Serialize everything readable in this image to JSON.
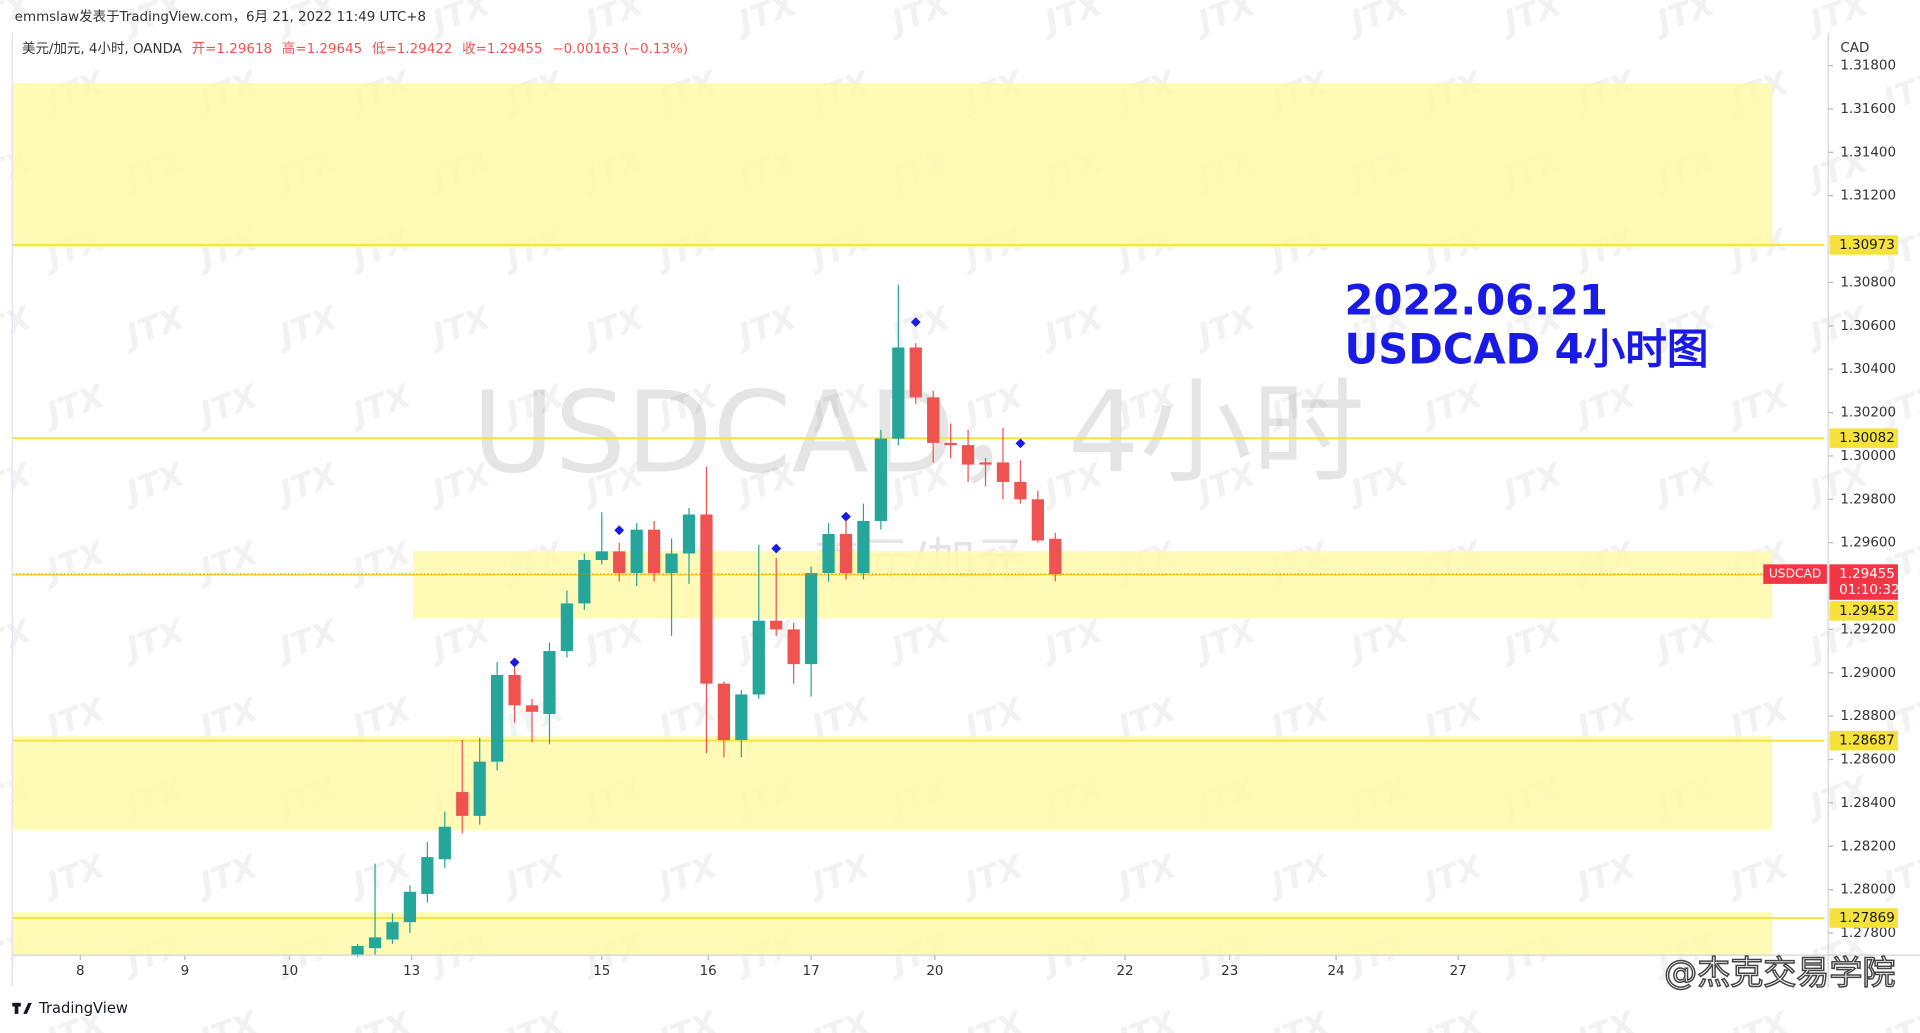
{
  "header": {
    "publisher": "emmslaw发表于TradingView.com，6月 21, 2022 11:49 UTC+8",
    "symbol": "美元/加元, 4小时, OANDA",
    "ohlc": [
      "开=1.29618",
      "高=1.29645",
      "低=1.29422",
      "收=1.29455"
    ],
    "change": "−0.00163 (−0.13%)"
  },
  "watermark": {
    "main": "USDCAD，4小时",
    "sub": "美元/加元",
    "tile": "JTX",
    "corner": "@杰克交易学院"
  },
  "annotation": [
    "2022.06.21",
    "USDCAD 4小时图"
  ],
  "footer": "TradingView",
  "chart_data": {
    "type": "candlestick",
    "currency": "CAD",
    "up_color": "#26a69a",
    "down_color": "#ef5350",
    "x": [
      0,
      1,
      2,
      3,
      4,
      5,
      6,
      7,
      8,
      9,
      10,
      11,
      12,
      13,
      14,
      15,
      16,
      17,
      18,
      19,
      20,
      21,
      22,
      23,
      24,
      25,
      26,
      27,
      28,
      29,
      30,
      31,
      32,
      33,
      34,
      35,
      36,
      37,
      38,
      39,
      40
    ],
    "open": [
      1.277,
      1.2773,
      1.2777,
      1.2785,
      1.2798,
      1.2814,
      1.2845,
      1.2834,
      1.2859,
      1.2899,
      1.2885,
      1.2881,
      1.291,
      1.2932,
      1.2952,
      1.2956,
      1.2946,
      1.2966,
      1.2946,
      1.2955,
      1.2973,
      1.2895,
      1.2869,
      1.289,
      1.2924,
      1.292,
      1.2904,
      1.2946,
      1.2964,
      1.2946,
      1.297,
      1.3008,
      1.305,
      1.3027,
      1.3006,
      1.3005,
      1.2997,
      1.2997,
      1.2988,
      1.298,
      1.29618
    ],
    "high": [
      1.2775,
      1.2812,
      1.2789,
      1.2802,
      1.2822,
      1.2836,
      1.2869,
      1.287,
      1.2905,
      1.2905,
      1.2888,
      1.2914,
      1.2938,
      1.2955,
      1.2974,
      1.296,
      1.2969,
      1.297,
      1.2962,
      1.2976,
      1.2995,
      1.2896,
      1.2892,
      1.2959,
      1.2953,
      1.2923,
      1.2949,
      1.2969,
      1.297,
      1.2978,
      1.3012,
      1.3079,
      1.3052,
      1.303,
      1.3015,
      1.3012,
      1.2999,
      1.3013,
      1.2998,
      1.2984,
      1.29645
    ],
    "low": [
      1.2769,
      1.277,
      1.2775,
      1.278,
      1.2794,
      1.281,
      1.2826,
      1.283,
      1.2855,
      1.2877,
      1.2868,
      1.2867,
      1.2907,
      1.2929,
      1.295,
      1.2942,
      1.294,
      1.2942,
      1.2917,
      1.2941,
      1.2863,
      1.2861,
      1.2861,
      1.2888,
      1.2917,
      1.2895,
      1.2889,
      1.2942,
      1.2943,
      1.2943,
      1.2966,
      1.3005,
      1.3024,
      1.2997,
      1.2999,
      1.2988,
      1.2986,
      1.298,
      1.2978,
      1.296,
      1.29422
    ],
    "close": [
      1.2774,
      1.2778,
      1.2785,
      1.2799,
      1.2815,
      1.2829,
      1.2834,
      1.2859,
      1.2899,
      1.2885,
      1.2882,
      1.291,
      1.2932,
      1.2952,
      1.2956,
      1.2946,
      1.2966,
      1.2946,
      1.2955,
      1.2973,
      1.2895,
      1.2869,
      1.289,
      1.2924,
      1.292,
      1.2904,
      1.2946,
      1.2964,
      1.2946,
      1.297,
      1.3008,
      1.305,
      1.3027,
      1.3006,
      1.3005,
      1.2996,
      1.2996,
      1.2988,
      1.298,
      1.2961,
      1.29455
    ],
    "markers": {
      "color": "#1a1ae6",
      "x": [
        9,
        15,
        24,
        28,
        32,
        38
      ],
      "values": [
        1.29048,
        1.29657,
        1.29573,
        1.2972,
        1.30617,
        1.30058
      ]
    },
    "zones": [
      {
        "top": 1.3172,
        "bottom": 1.30962,
        "from": -19.8,
        "to": 81.1
      },
      {
        "top": 1.29561,
        "bottom": 1.29251,
        "from": 3.2,
        "to": 81.1
      },
      {
        "top": 1.28709,
        "bottom": 1.28274,
        "from": -19.8,
        "to": 81.1
      },
      {
        "top": 1.27896,
        "bottom": 1.27698,
        "from": -19.8,
        "to": 81.1
      }
    ],
    "zone_color": "#fff9a8",
    "line_color": "#f7e23c",
    "hlines": [
      {
        "value": 1.30973,
        "label": "1.30973"
      },
      {
        "value": 1.30082,
        "label": "1.30082"
      },
      {
        "value": 1.29452,
        "label": "1.29452"
      },
      {
        "value": 1.28687,
        "label": "1.28687"
      },
      {
        "value": 1.27869,
        "label": "1.27869"
      }
    ],
    "last": {
      "name": "USDCAD",
      "value": 1.29455,
      "label": "1.29455",
      "countdown": "01:10:32",
      "color": "#f23645"
    },
    "xlim": [
      -19.8,
      84.1
    ],
    "xticks": [
      {
        "value": -15.9,
        "label": "8"
      },
      {
        "value": -9.9,
        "label": "9"
      },
      {
        "value": -3.9,
        "label": "10"
      },
      {
        "value": 3.1,
        "label": "13"
      },
      {
        "value": 14,
        "label": "15"
      },
      {
        "value": 20.1,
        "label": "16"
      },
      {
        "value": 26,
        "label": "17"
      },
      {
        "value": 33.1,
        "label": "20"
      },
      {
        "value": 44,
        "label": "22"
      },
      {
        "value": 50,
        "label": "23"
      },
      {
        "value": 56.1,
        "label": "24"
      },
      {
        "value": 63.1,
        "label": "27"
      }
    ],
    "ylim": [
      1.27698,
      1.3195
    ],
    "yticks": [
      {
        "value": 1.278,
        "label": "1.27800"
      },
      {
        "value": 1.28,
        "label": "1.28000"
      },
      {
        "value": 1.282,
        "label": "1.28200"
      },
      {
        "value": 1.284,
        "label": "1.28400"
      },
      {
        "value": 1.286,
        "label": "1.28600"
      },
      {
        "value": 1.288,
        "label": "1.28800"
      },
      {
        "value": 1.29,
        "label": "1.29000"
      },
      {
        "value": 1.292,
        "label": "1.29200"
      },
      {
        "value": 1.296,
        "label": "1.29600"
      },
      {
        "value": 1.298,
        "label": "1.29800"
      },
      {
        "value": 1.3,
        "label": "1.30000"
      },
      {
        "value": 1.302,
        "label": "1.30200"
      },
      {
        "value": 1.304,
        "label": "1.30400"
      },
      {
        "value": 1.306,
        "label": "1.30600"
      },
      {
        "value": 1.308,
        "label": "1.30800"
      },
      {
        "value": 1.312,
        "label": "1.31200"
      },
      {
        "value": 1.314,
        "label": "1.31400"
      },
      {
        "value": 1.316,
        "label": "1.31600"
      },
      {
        "value": 1.318,
        "label": "1.31800"
      }
    ],
    "grid": false
  }
}
